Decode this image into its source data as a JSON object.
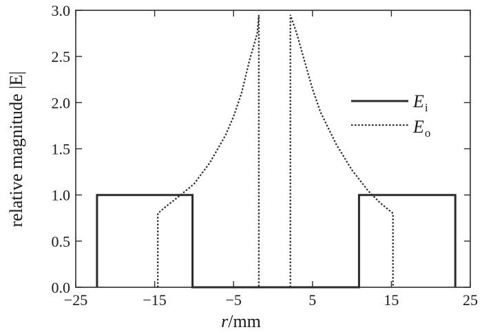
{
  "chart_data": {
    "type": "line",
    "xlabel": "r/mm",
    "xlabel_var": "r",
    "xlabel_unit": "/mm",
    "ylabel": "relative magnitude |E|",
    "xlim": [
      -25,
      25
    ],
    "ylim": [
      0,
      3.0
    ],
    "xticks": [
      -25,
      -15,
      -5,
      5,
      15,
      25
    ],
    "xtick_labels": [
      "−25",
      "−15",
      "−5",
      "5",
      "15",
      "25"
    ],
    "yticks": [
      0,
      0.5,
      1.0,
      1.5,
      2.0,
      2.5,
      3.0
    ],
    "ytick_labels": [
      "0.0",
      "0.5",
      "1.0",
      "1.5",
      "2.0",
      "2.5",
      "3.0"
    ],
    "legend_position": "right",
    "grid": false,
    "series": [
      {
        "name": "E_i",
        "label_main": "E",
        "label_sub": "i",
        "style": "solid",
        "color": "#2b2b2b",
        "points": [
          [
            -22.3,
            0
          ],
          [
            -22.3,
            1.0
          ],
          [
            -10.2,
            1.0
          ],
          [
            -10.2,
            0
          ],
          [
            10.9,
            0
          ],
          [
            10.9,
            1.0
          ],
          [
            23.1,
            1.0
          ],
          [
            23.1,
            0
          ]
        ]
      },
      {
        "name": "E_o",
        "label_main": "E",
        "label_sub": "o",
        "style": "dotted",
        "color": "#2b2b2b",
        "segments": [
          [
            [
              -14.6,
              0
            ],
            [
              -14.6,
              0.8
            ],
            [
              -13.2,
              0.9
            ],
            [
              -11.7,
              1.0
            ],
            [
              -10.0,
              1.12
            ],
            [
              -8.0,
              1.35
            ],
            [
              -6.0,
              1.65
            ],
            [
              -5.0,
              1.85
            ],
            [
              -4.0,
              2.1
            ],
            [
              -3.0,
              2.45
            ],
            [
              -2.0,
              2.75
            ],
            [
              -1.8,
              2.95
            ],
            [
              -1.8,
              0
            ]
          ],
          [
            [
              2.2,
              0
            ],
            [
              2.2,
              2.95
            ],
            [
              3.0,
              2.75
            ],
            [
              4.0,
              2.45
            ],
            [
              5.0,
              2.15
            ],
            [
              6.0,
              1.9
            ],
            [
              8.0,
              1.55
            ],
            [
              10.0,
              1.27
            ],
            [
              12.0,
              1.05
            ],
            [
              13.5,
              0.92
            ],
            [
              15.2,
              0.8
            ],
            [
              15.2,
              0
            ]
          ]
        ]
      }
    ]
  }
}
